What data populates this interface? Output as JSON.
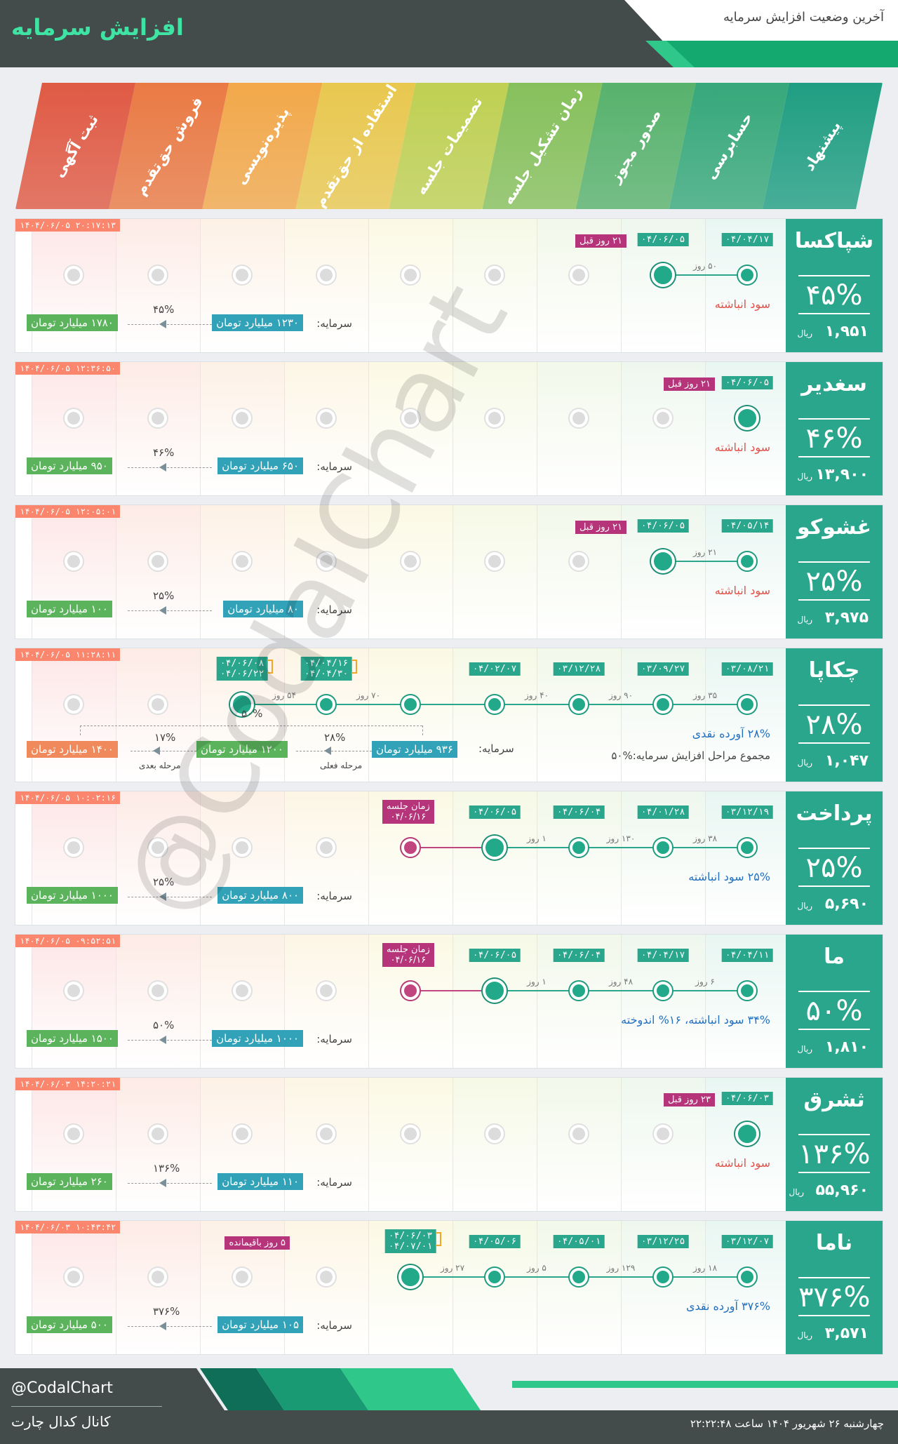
{
  "header": {
    "brand": "افزایش سرمایه",
    "subtitle": "آخرین وضعیت افزایش سرمایه"
  },
  "stages": [
    {
      "label": "پیشنهاد",
      "color": "#1f9e82"
    },
    {
      "label": "حسابرسی",
      "color": "#36a87a"
    },
    {
      "label": "صدور مجوز",
      "color": "#57b26c"
    },
    {
      "label": "زمان تشکیل جلسه",
      "color": "#86c05b"
    },
    {
      "label": "تصمیمات جلسه",
      "color": "#bfd052"
    },
    {
      "label": "استفاده از حق‌تقدم",
      "color": "#e9c84f"
    },
    {
      "label": "پذیره‌نویسی",
      "color": "#f2a84a"
    },
    {
      "label": "فروش حق‌تقدم",
      "color": "#ea7a44"
    },
    {
      "label": "ثبت آگهی",
      "color": "#e05a44"
    }
  ],
  "rows": [
    {
      "name": "شپاکسا",
      "pct": "۴۵%",
      "price": "۱,۹۵۱",
      "currency": "ریال",
      "stamp": "۱۴۰۴/۰۶/۰۵ ۲۰:۱۷:۱۳",
      "note": "سود انباشته",
      "capital_label": "سرمایه:",
      "capital": "۱۲۳۰ میلیارد تومان",
      "target": "۱۷۸۰ میلیارد تومان",
      "change": "۴۵%",
      "badge": "۲۱ روز قبل",
      "dates": [
        "۰۴/۰۴/۱۷",
        "۰۴/۰۶/۰۵"
      ],
      "days": [
        "۵۰ روز"
      ]
    },
    {
      "name": "سغدیر",
      "pct": "۴۶%",
      "price": "۱۳,۹۰۰",
      "currency": "ریال",
      "stamp": "۱۴۰۴/۰۶/۰۵ ۱۲:۳۶:۵۰",
      "note": "سود انباشته",
      "capital_label": "سرمایه:",
      "capital": "۶۵۰ میلیارد تومان",
      "target": "۹۵۰ میلیارد تومان",
      "change": "۴۶%",
      "badge": "۲۱ روز قبل",
      "dates": [
        "۰۴/۰۶/۰۵"
      ],
      "days": []
    },
    {
      "name": "غشوکو",
      "pct": "۲۵%",
      "price": "۳,۹۷۵",
      "currency": "ریال",
      "stamp": "۱۴۰۴/۰۶/۰۵ ۱۲:۰۵:۰۱",
      "note": "سود انباشته",
      "capital_label": "سرمایه:",
      "capital": "۸۰ میلیارد تومان",
      "target": "۱۰۰ میلیارد تومان",
      "change": "۲۵%",
      "badge": "۲۱ روز قبل",
      "dates": [
        "۰۴/۰۵/۱۴",
        "۰۴/۰۶/۰۵"
      ],
      "days": [
        "۲۱ روز"
      ]
    },
    {
      "name": "چکاپا",
      "pct": "۲۸%",
      "price": "۱,۰۴۷",
      "currency": "ریال",
      "stamp": "۱۴۰۴/۰۶/۰۵ ۱۱:۲۸:۱۱",
      "note": "۲۸% آورده نقدی",
      "note2": "مجموع مراحل افزایش سرمایه:%۵۰",
      "capital_label": "سرمایه:",
      "capital": "۹۳۶ میلیارد تومان",
      "target": "۱۲۰۰ میلیارد تومان",
      "target2": "۱۴۰۰ میلیارد تومان",
      "change": "۲۸%",
      "change2": "۱۷%",
      "total": "۵۰%",
      "stage_now": "مرحله فعلی",
      "stage_next": "مرحله بعدی",
      "dates": [
        "۰۳/۰۸/۲۱",
        "۰۳/۰۹/۲۷",
        "۰۳/۱۲/۲۸",
        "۰۴/۰۲/۰۷"
      ],
      "date_pairs": [
        [
          "۰۴/۰۴/۱۶",
          "۰۴/۰۴/۳۰"
        ],
        [
          "۰۴/۰۶/۰۸",
          "۰۴/۰۶/۲۲"
        ]
      ],
      "days": [
        "۳۵ روز",
        "۹۰ روز",
        "۴۰ روز",
        "۷۰ روز",
        "۵۴ روز"
      ]
    },
    {
      "name": "پرداخت",
      "pct": "۲۵%",
      "price": "۵,۶۹۰",
      "currency": "ریال",
      "stamp": "۱۴۰۴/۰۶/۰۵ ۱۰:۰۲:۱۶",
      "note": "۲۵% سود انباشته",
      "capital_label": "سرمایه:",
      "capital": "۸۰۰ میلیارد تومان",
      "target": "۱۰۰۰ میلیارد تومان",
      "change": "۲۵%",
      "meeting_badge": [
        "زمان جلسه",
        "۰۴/۰۶/۱۶"
      ],
      "dates": [
        "۰۳/۱۲/۱۹",
        "۰۴/۰۱/۲۸",
        "۰۴/۰۶/۰۴",
        "۰۴/۰۶/۰۵"
      ],
      "days": [
        "۳۸ روز",
        "۱۳۰ روز",
        "۱ روز"
      ]
    },
    {
      "name": "ما",
      "pct": "۵۰%",
      "price": "۱,۸۱۰",
      "currency": "ریال",
      "stamp": "۱۴۰۴/۰۶/۰۵ ۰۹:۵۲:۵۱",
      "note": "۳۴% سود انباشته، ۱۶% اندوخته",
      "capital_label": "سرمایه:",
      "capital": "۱۰۰۰ میلیارد تومان",
      "target": "۱۵۰۰ میلیارد تومان",
      "change": "۵۰%",
      "meeting_badge": [
        "زمان جلسه",
        "۰۴/۰۶/۱۶"
      ],
      "dates": [
        "۰۴/۰۴/۱۱",
        "۰۴/۰۴/۱۷",
        "۰۴/۰۶/۰۴",
        "۰۴/۰۶/۰۵"
      ],
      "days": [
        "۶ روز",
        "۴۸ روز",
        "۱ روز"
      ]
    },
    {
      "name": "ثشرق",
      "pct": "۱۳۶%",
      "price": "۵۵,۹۶۰",
      "currency": "ریال",
      "stamp": "۱۴۰۴/۰۶/۰۳ ۱۴:۲۰:۲۱",
      "note": "سود انباشته",
      "capital_label": "سرمایه:",
      "capital": "۱۱۰ میلیارد تومان",
      "target": "۲۶۰ میلیارد تومان",
      "change": "۱۳۶%",
      "badge": "۲۳ روز قبل",
      "dates": [
        "۰۴/۰۶/۰۳"
      ],
      "days": []
    },
    {
      "name": "ناما",
      "pct": "۳۷۶%",
      "price": "۳,۵۷۱",
      "currency": "ریال",
      "stamp": "۱۴۰۴/۰۶/۰۳ ۱۰:۴۳:۴۲",
      "note": "۳۷۶% آورده نقدی",
      "capital_label": "سرمایه:",
      "capital": "۱۰۵ میلیارد تومان",
      "target": "۵۰۰ میلیارد تومان",
      "change": "۳۷۶%",
      "badge": "۵ روز باقیمانده",
      "dates": [
        "۰۳/۱۲/۰۷",
        "۰۳/۱۲/۲۵",
        "۰۴/۰۵/۰۱",
        "۰۴/۰۵/۰۶"
      ],
      "date_pairs": [
        [
          "۰۴/۰۶/۰۳",
          "۰۴/۰۷/۰۱"
        ]
      ],
      "days": [
        "۱۸ روز",
        "۱۲۹ روز",
        "۵ روز",
        "۲۷ روز"
      ]
    }
  ],
  "watermark": "@CodalChart",
  "footer": {
    "handle": "@CodalChart",
    "channel": "کانال کدال چارت",
    "datetime": "چهارشنبه ۲۶ شهریور ۱۴۰۴ ساعت ۲۲:۲۲:۴۸"
  }
}
